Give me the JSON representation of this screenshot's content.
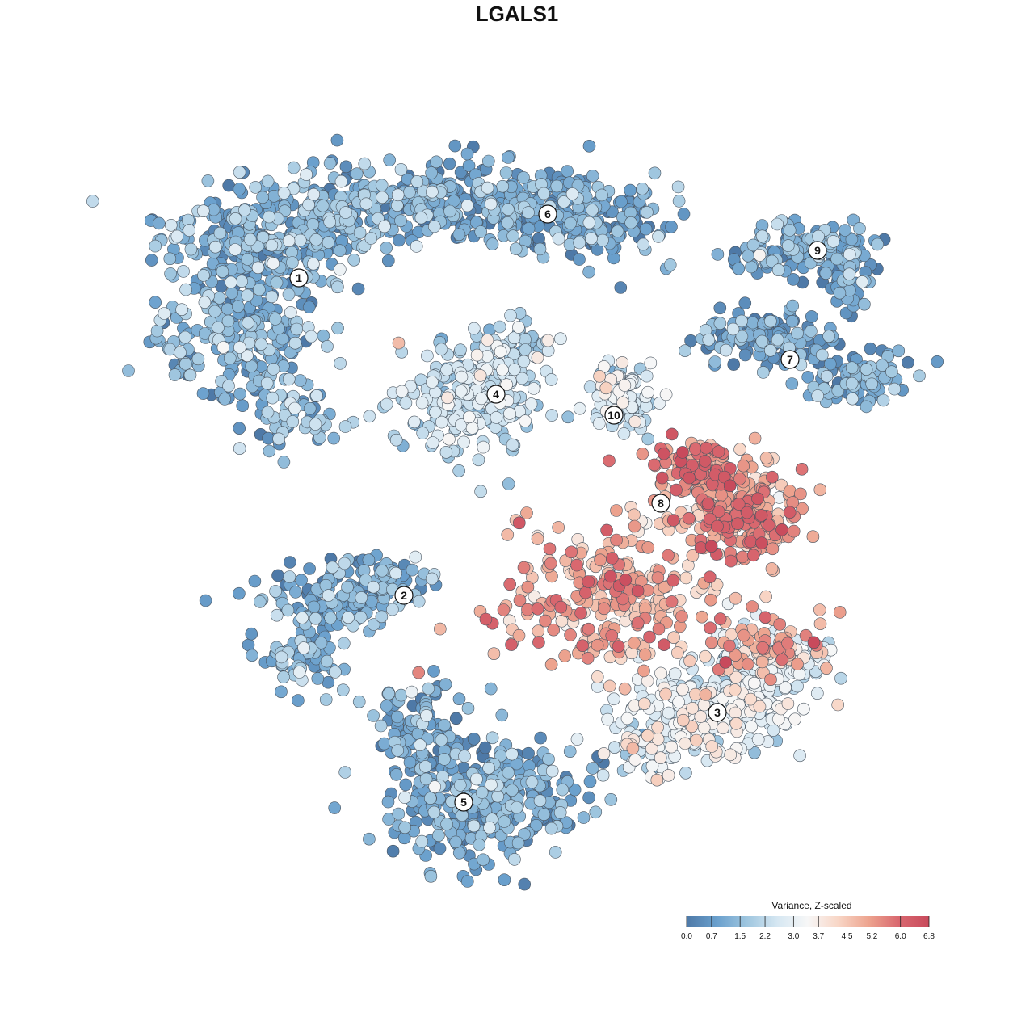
{
  "chart_data": {
    "type": "scatter",
    "title": "LGALS1",
    "legend": {
      "title": "Variance, Z-scaled",
      "placement": "bottom-right",
      "ticks": [
        "0.0",
        "0.7",
        "1.5",
        "2.2",
        "3.0",
        "3.7",
        "4.5",
        "5.2",
        "6.0",
        "6.8"
      ],
      "range": [
        0,
        6.8
      ],
      "colors": [
        "#4e79a7",
        "#6aa0cd",
        "#9fc6df",
        "#d6e7f2",
        "#f7f7f7",
        "#f8d6c6",
        "#eda48f",
        "#d9686f",
        "#c84a5c"
      ]
    },
    "clusters": [
      {
        "label": "1",
        "value": 1.2
      },
      {
        "label": "2",
        "value": 1.1
      },
      {
        "label": "3",
        "value": 2.9
      },
      {
        "label": "4",
        "value": 2.2
      },
      {
        "label": "5",
        "value": 1.0
      },
      {
        "label": "6",
        "value": 0.9
      },
      {
        "label": "7",
        "value": 0.9
      },
      {
        "label": "8",
        "value": 4.9
      },
      {
        "label": "9",
        "value": 1.0
      },
      {
        "label": "10",
        "value": 2.6
      }
    ],
    "grid": false,
    "axes_visible": false
  }
}
